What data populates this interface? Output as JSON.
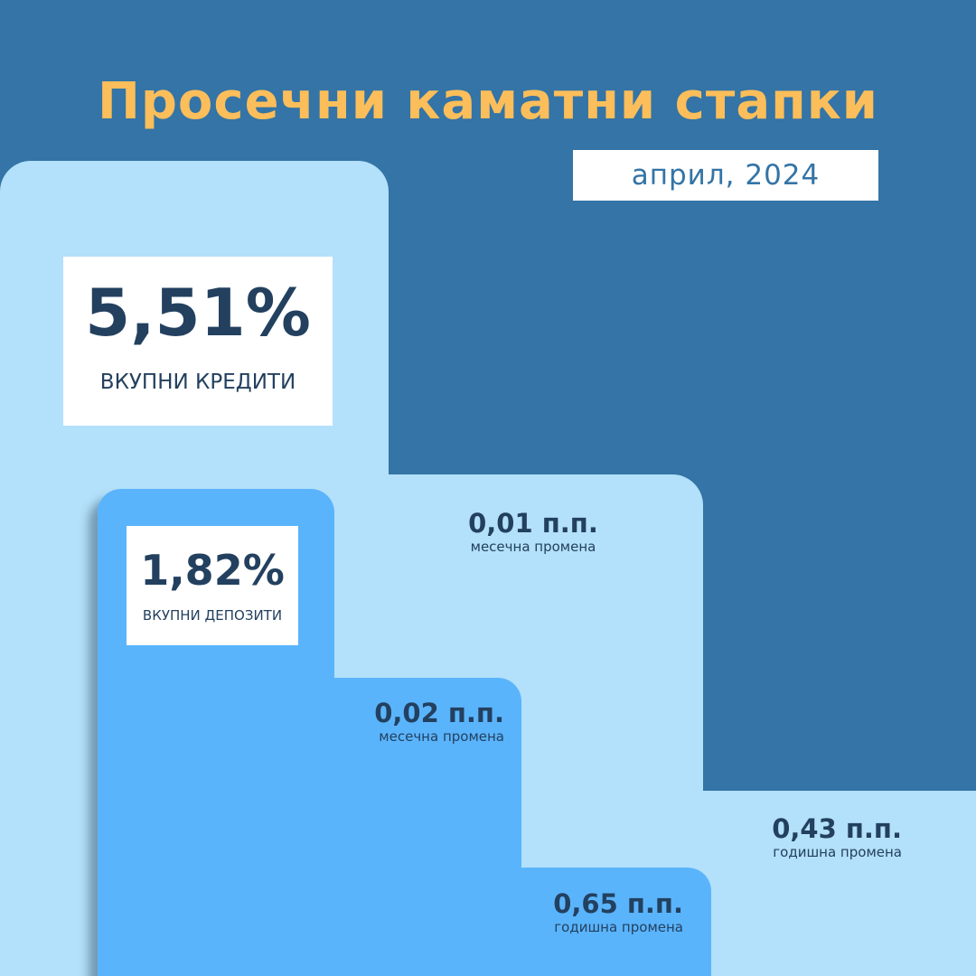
{
  "title": "Просечни каматни стапки",
  "period": "април, 2024",
  "colors": {
    "background": "#3474A6",
    "loans_shape": "#B3E0FA",
    "deposits_shape": "#5AB4FC",
    "title": "#FBBE5A",
    "text": "#23405F"
  },
  "loans": {
    "value": "5,51%",
    "label": "ВКУПНИ КРЕДИТИ",
    "monthly": {
      "value": "0,01 п.п.",
      "label": "месечна промена"
    },
    "yearly": {
      "value": "0,43 п.п.",
      "label": "годишна промена"
    }
  },
  "deposits": {
    "value": "1,82%",
    "label": "ВКУПНИ ДЕПОЗИТИ",
    "monthly": {
      "value": "0,02 п.п.",
      "label": "месечна промена"
    },
    "yearly": {
      "value": "0,65 п.п.",
      "label": "годишна промена"
    }
  }
}
